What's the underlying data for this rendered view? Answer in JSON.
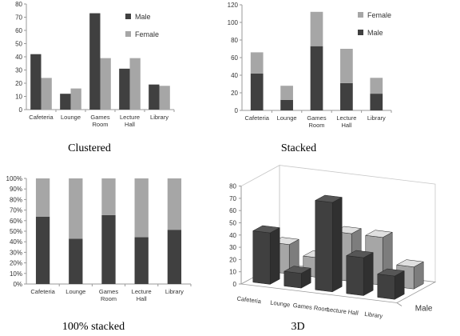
{
  "colors": {
    "male": "#404040",
    "female": "#a6a6a6",
    "axis": "#9a9a9a",
    "text": "#333333"
  },
  "chart_data": [
    {
      "type": "bar",
      "mode": "clustered",
      "caption": "Clustered",
      "categories": [
        "Cafeteria",
        "Lounge",
        "Games Room",
        "Lecture Hall",
        "Library"
      ],
      "series": [
        {
          "name": "Male",
          "values": [
            42,
            12,
            73,
            31,
            19
          ]
        },
        {
          "name": "Female",
          "values": [
            24,
            16,
            39,
            39,
            18
          ]
        }
      ],
      "ylim": [
        0,
        80
      ],
      "yticks": [
        "0",
        "10",
        "20",
        "30",
        "40",
        "50",
        "60",
        "70",
        "80"
      ],
      "legend": "top-right"
    },
    {
      "type": "bar",
      "mode": "stacked",
      "caption": "Stacked",
      "categories": [
        "Cafeteria",
        "Lounge",
        "Games Room",
        "Lecture Hall",
        "Library"
      ],
      "series": [
        {
          "name": "Male",
          "values": [
            42,
            12,
            73,
            31,
            19
          ]
        },
        {
          "name": "Female",
          "values": [
            24,
            16,
            39,
            39,
            18
          ]
        }
      ],
      "ylim": [
        0,
        120
      ],
      "yticks": [
        "0",
        "20",
        "40",
        "60",
        "80",
        "100",
        "120"
      ],
      "legend": "top-right"
    },
    {
      "type": "bar",
      "mode": "percent",
      "caption": "100% stacked",
      "categories": [
        "Cafeteria",
        "Lounge",
        "Games Room",
        "Lecture Hall",
        "Library"
      ],
      "series": [
        {
          "name": "Male",
          "values": [
            42,
            12,
            73,
            31,
            19
          ]
        },
        {
          "name": "Female",
          "values": [
            24,
            16,
            39,
            39,
            18
          ]
        }
      ],
      "ylim": [
        0,
        100
      ],
      "yticks": [
        "0%",
        "10%",
        "20%",
        "30%",
        "40%",
        "50%",
        "60%",
        "70%",
        "80%",
        "90%",
        "100%"
      ]
    },
    {
      "type": "bar",
      "mode": "3d",
      "caption": "3D",
      "categories": [
        "Cafeteria",
        "Lounge",
        "Games Room",
        "Lecture Hall",
        "Library"
      ],
      "series": [
        {
          "name": "Male",
          "values": [
            42,
            12,
            73,
            31,
            19
          ]
        },
        {
          "name": "Female",
          "values": [
            24,
            16,
            39,
            39,
            18
          ]
        }
      ],
      "depth_label": "Male",
      "ylim": [
        0,
        80
      ],
      "yticks": [
        "0",
        "10",
        "20",
        "30",
        "40",
        "50",
        "60",
        "70",
        "80"
      ]
    }
  ]
}
